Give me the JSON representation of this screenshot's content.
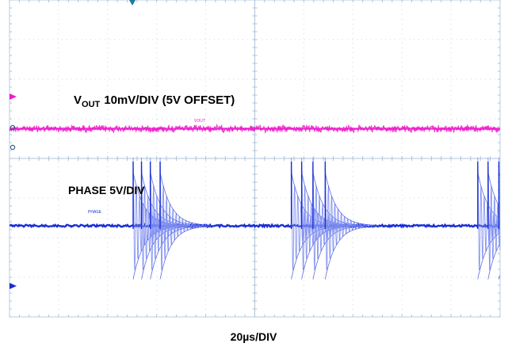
{
  "chart_data": {
    "type": "line",
    "title": "",
    "xlabel": "20µs/DIV",
    "x_unit": "µs",
    "x_divisions": 10,
    "x_per_div": 20,
    "xlim": [
      0,
      200
    ],
    "y_divisions": 8,
    "grid": true,
    "series": [
      {
        "name": "VOUT",
        "label_main": "V",
        "label_sub": "OUT",
        "label_scale": "10mV/DIV (5V OFFSET)",
        "tag": "VOUT",
        "color": "#ee1ccc",
        "volts_per_div": 0.01,
        "offset_v": 5,
        "y_level_div": 0.75,
        "x": [
          0,
          50,
          100,
          150,
          200
        ],
        "y": [
          5.0,
          5.0,
          5.0,
          5.0,
          5.0
        ]
      },
      {
        "name": "PHASE",
        "label_main": "PHASE",
        "label_scale": "5V/DIV",
        "tag": "PHASE",
        "color": "#1a2fd6",
        "ringing_color": "#7f8ff0",
        "volts_per_div": 5,
        "baseline_div": -1.7,
        "switching_bursts_us": [
          {
            "pulses_start_us": [
              50.4,
              53.8,
              57.4,
              61.4
            ]
          },
          {
            "pulses_start_us": [
              114.9,
              119.1,
              123.7,
              128.7
            ]
          },
          {
            "pulses_start_us": [
              190.9,
              195.1,
              199.5
            ]
          }
        ],
        "ring_peak_div": 1.5,
        "ring_decay_us": 4.5
      }
    ]
  },
  "icons": {
    "trigger_marker": "trigger-position-icon",
    "vout_ground_marker": "channel-marker-icon",
    "phase_ground_marker": "channel-marker-icon"
  }
}
